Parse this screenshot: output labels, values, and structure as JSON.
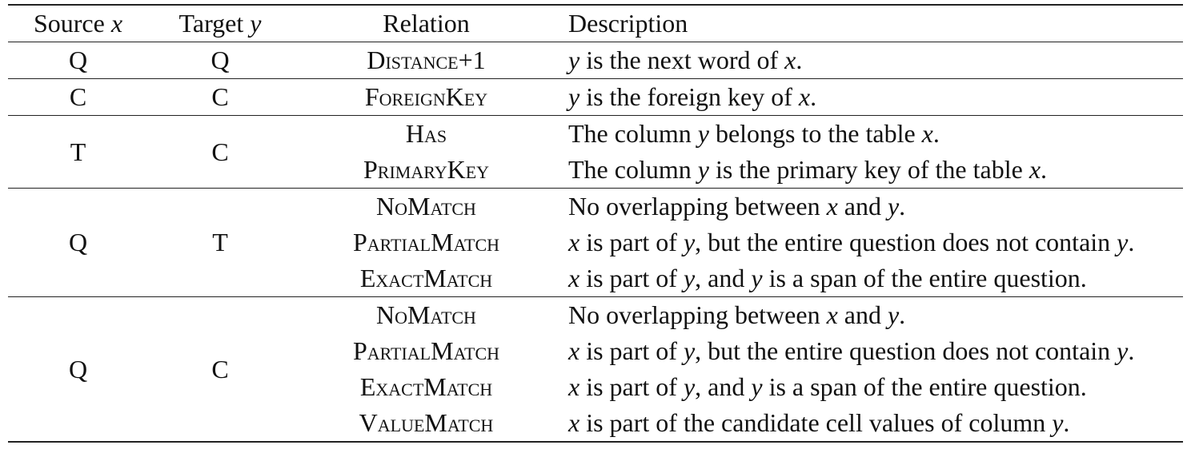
{
  "header": {
    "source": "Source",
    "source_var": "x",
    "target": "Target",
    "target_var": "y",
    "relation": "Relation",
    "description": "Description"
  },
  "groups": [
    {
      "source": "Q",
      "target": "Q",
      "rows": [
        {
          "relation": "Distance+1",
          "desc": [
            [
              "v",
              "y"
            ],
            [
              "t",
              " is the next word of "
            ],
            [
              "v",
              "x"
            ],
            [
              "t",
              "."
            ]
          ]
        }
      ]
    },
    {
      "source": "C",
      "target": "C",
      "rows": [
        {
          "relation": "ForeignKey",
          "desc": [
            [
              "v",
              "y"
            ],
            [
              "t",
              " is the foreign key of "
            ],
            [
              "v",
              "x"
            ],
            [
              "t",
              "."
            ]
          ]
        }
      ]
    },
    {
      "source": "T",
      "target": "C",
      "rows": [
        {
          "relation": "Has",
          "desc": [
            [
              "t",
              "The column "
            ],
            [
              "v",
              "y"
            ],
            [
              "t",
              " belongs to the table "
            ],
            [
              "v",
              "x"
            ],
            [
              "t",
              "."
            ]
          ]
        },
        {
          "relation": "PrimaryKey",
          "desc": [
            [
              "t",
              "The column "
            ],
            [
              "v",
              "y"
            ],
            [
              "t",
              " is the primary key of the table "
            ],
            [
              "v",
              "x"
            ],
            [
              "t",
              "."
            ]
          ]
        }
      ]
    },
    {
      "source": "Q",
      "target": "T",
      "rows": [
        {
          "relation": "NoMatch",
          "desc": [
            [
              "t",
              "No overlapping between "
            ],
            [
              "v",
              "x"
            ],
            [
              "t",
              " and "
            ],
            [
              "v",
              "y"
            ],
            [
              "t",
              "."
            ]
          ]
        },
        {
          "relation": "PartialMatch",
          "desc": [
            [
              "v",
              "x"
            ],
            [
              "t",
              " is part of "
            ],
            [
              "v",
              "y"
            ],
            [
              "t",
              ", but the entire question does not contain "
            ],
            [
              "v",
              "y"
            ],
            [
              "t",
              "."
            ]
          ]
        },
        {
          "relation": "ExactMatch",
          "desc": [
            [
              "v",
              "x"
            ],
            [
              "t",
              " is part of "
            ],
            [
              "v",
              "y"
            ],
            [
              "t",
              ", and "
            ],
            [
              "v",
              "y"
            ],
            [
              "t",
              " is a span of the entire question."
            ]
          ]
        }
      ]
    },
    {
      "source": "Q",
      "target": "C",
      "rows": [
        {
          "relation": "NoMatch",
          "desc": [
            [
              "t",
              "No overlapping between "
            ],
            [
              "v",
              "x"
            ],
            [
              "t",
              " and "
            ],
            [
              "v",
              "y"
            ],
            [
              "t",
              "."
            ]
          ]
        },
        {
          "relation": "PartialMatch",
          "desc": [
            [
              "v",
              "x"
            ],
            [
              "t",
              " is part of "
            ],
            [
              "v",
              "y"
            ],
            [
              "t",
              ", but the entire question does not contain "
            ],
            [
              "v",
              "y"
            ],
            [
              "t",
              "."
            ]
          ]
        },
        {
          "relation": "ExactMatch",
          "desc": [
            [
              "v",
              "x"
            ],
            [
              "t",
              " is part of "
            ],
            [
              "v",
              "y"
            ],
            [
              "t",
              ", and "
            ],
            [
              "v",
              "y"
            ],
            [
              "t",
              " is a span of the entire question."
            ]
          ]
        },
        {
          "relation": "ValueMatch",
          "desc": [
            [
              "v",
              "x"
            ],
            [
              "t",
              " is part of the candidate cell values of column "
            ],
            [
              "v",
              "y"
            ],
            [
              "t",
              "."
            ]
          ]
        }
      ]
    }
  ]
}
